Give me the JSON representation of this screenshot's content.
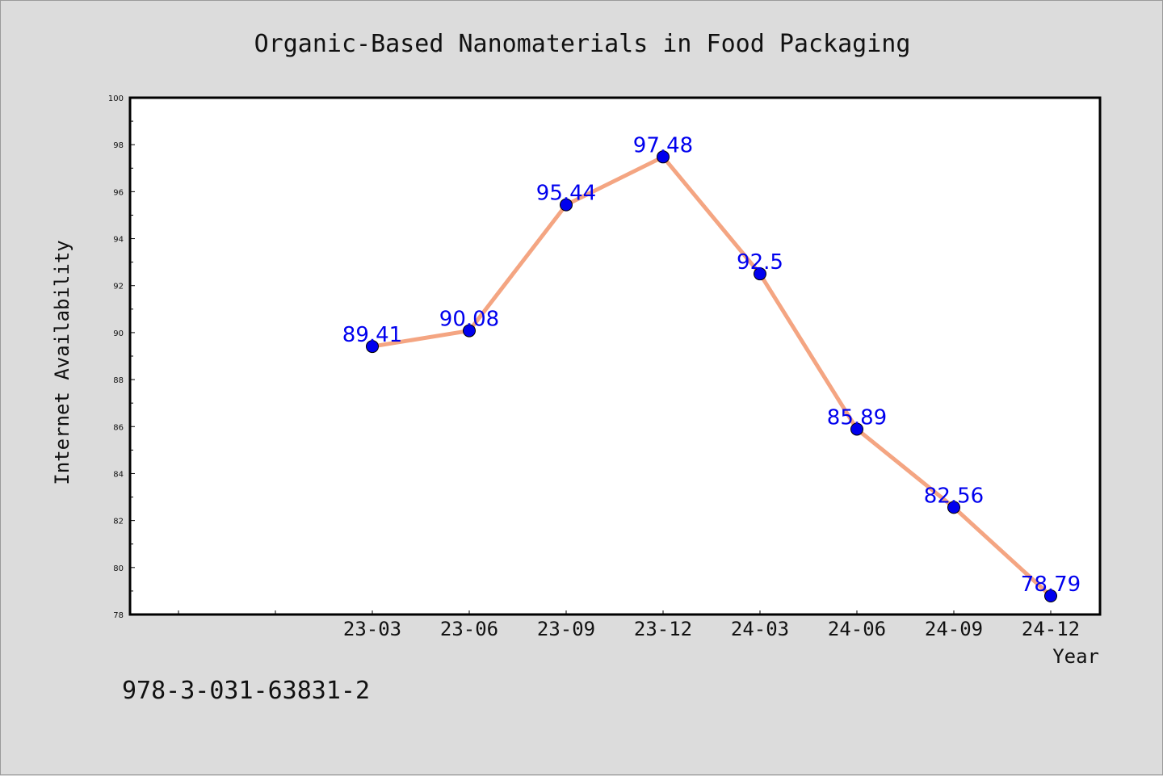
{
  "chart_data": {
    "type": "line",
    "title": "Organic-Based Nanomaterials in Food Packaging",
    "xlabel": "Year",
    "ylabel": "Internet Availability",
    "categories": [
      "23-03",
      "23-06",
      "23-09",
      "23-12",
      "24-03",
      "24-06",
      "24-09",
      "24-12"
    ],
    "series": [
      {
        "values": [
          89.41,
          90.08,
          95.44,
          97.48,
          92.5,
          85.89,
          82.56,
          78.79
        ]
      }
    ],
    "data_labels": [
      "89.41",
      "90.08",
      "95.44",
      "97.48",
      "92.5",
      "85.89",
      "82.56",
      "78.79"
    ],
    "ylim": [
      78,
      100
    ],
    "yticks": [
      "78",
      "80",
      "82",
      "84",
      "86",
      "88",
      "90",
      "92",
      "94",
      "96",
      "98",
      "100"
    ],
    "grid": false,
    "legend": "none",
    "line_color": "#f4a582",
    "marker_color": "#0000ee",
    "label_color": "#0000ee"
  },
  "footer": {
    "isbn": "978-3-031-63831-2"
  }
}
